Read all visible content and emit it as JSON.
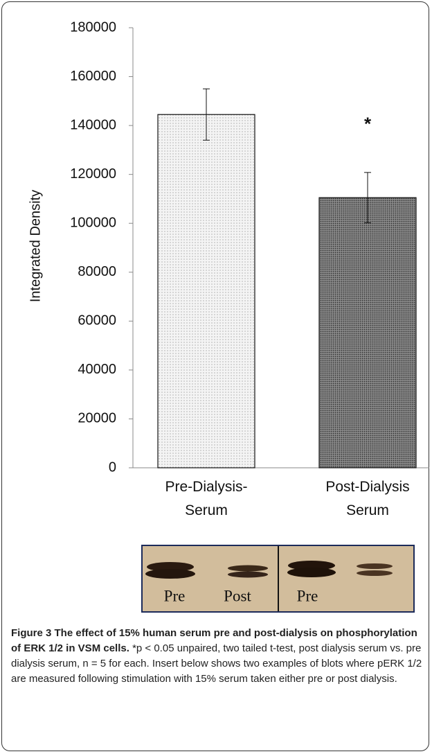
{
  "chart_data": {
    "type": "bar",
    "y_label": "Integrated Density",
    "categories": [
      "Pre-Dialysis-\nSerum",
      "Post-Dialysis\nSerum"
    ],
    "values": [
      144500,
      110500
    ],
    "errors": [
      10500,
      10300
    ],
    "colors": [
      "#f4f4f4",
      "#8a8a8a"
    ],
    "annotation": "*",
    "ylim": [
      0,
      180000
    ],
    "yticks": [
      0,
      20000,
      40000,
      60000,
      80000,
      100000,
      120000,
      140000,
      160000,
      180000
    ],
    "grid": false
  },
  "blot": {
    "labels": [
      "Pre",
      "Post",
      "Pre"
    ]
  },
  "caption": {
    "title": "Figure 3 The effect of 15% human serum pre and post-dialysis on phosphorylation of ERK 1/2 in VSM cells.",
    "text": "*p < 0.05 unpaired, two tailed t-test, post dialysis serum vs. pre dialysis serum, n = 5 for each. Insert below shows two examples of blots where pERK 1/2 are measured following stimulation with 15% serum taken either pre or post dialysis."
  }
}
